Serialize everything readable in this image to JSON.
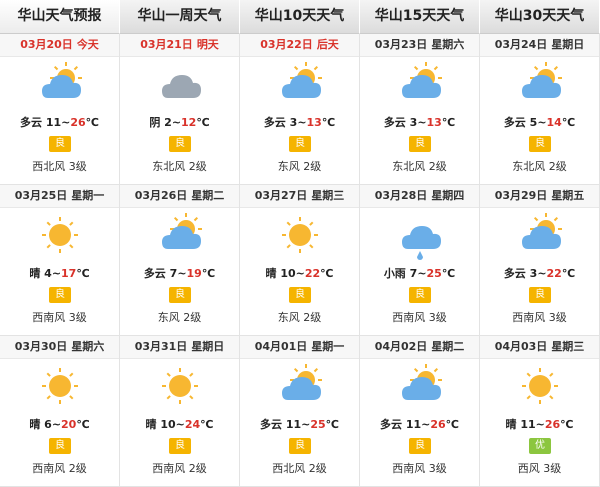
{
  "tabs": [
    "华山天气预报",
    "华山一周天气",
    "华山10天天气",
    "华山15天天气",
    "华山30天天气"
  ],
  "temp_separator": "~",
  "temp_unit": "℃",
  "days": [
    {
      "date": "03月20日",
      "weekday": "今天",
      "date_color": "#d9322a",
      "condition": "多云",
      "low": 11,
      "high": 26,
      "air": "良",
      "air_color": "#f5b400",
      "wind": "西北风 3级"
    },
    {
      "date": "03月21日",
      "weekday": "明天",
      "date_color": "#d9322a",
      "condition": "阴",
      "low": 2,
      "high": 12,
      "air": "良",
      "air_color": "#f5b400",
      "wind": "东北风 2级"
    },
    {
      "date": "03月22日",
      "weekday": "后天",
      "date_color": "#d9322a",
      "condition": "多云",
      "low": 3,
      "high": 13,
      "air": "良",
      "air_color": "#f5b400",
      "wind": "东风 2级"
    },
    {
      "date": "03月23日",
      "weekday": "星期六",
      "date_color": "#333333",
      "condition": "多云",
      "low": 3,
      "high": 13,
      "air": "良",
      "air_color": "#f5b400",
      "wind": "东北风 2级"
    },
    {
      "date": "03月24日",
      "weekday": "星期日",
      "date_color": "#333333",
      "condition": "多云",
      "low": 5,
      "high": 14,
      "air": "良",
      "air_color": "#f5b400",
      "wind": "东北风 2级"
    },
    {
      "date": "03月25日",
      "weekday": "星期一",
      "date_color": "#333333",
      "condition": "晴",
      "low": 4,
      "high": 17,
      "air": "良",
      "air_color": "#f5b400",
      "wind": "西南风 3级"
    },
    {
      "date": "03月26日",
      "weekday": "星期二",
      "date_color": "#333333",
      "condition": "多云",
      "low": 7,
      "high": 19,
      "air": "良",
      "air_color": "#f5b400",
      "wind": "东风 2级"
    },
    {
      "date": "03月27日",
      "weekday": "星期三",
      "date_color": "#333333",
      "condition": "晴",
      "low": 10,
      "high": 22,
      "air": "良",
      "air_color": "#f5b400",
      "wind": "东风 2级"
    },
    {
      "date": "03月28日",
      "weekday": "星期四",
      "date_color": "#333333",
      "condition": "小雨",
      "low": 7,
      "high": 25,
      "air": "良",
      "air_color": "#f5b400",
      "wind": "西南风 3级"
    },
    {
      "date": "03月29日",
      "weekday": "星期五",
      "date_color": "#333333",
      "condition": "多云",
      "low": 3,
      "high": 22,
      "air": "良",
      "air_color": "#f5b400",
      "wind": "西南风 3级"
    },
    {
      "date": "03月30日",
      "weekday": "星期六",
      "date_color": "#333333",
      "condition": "晴",
      "low": 6,
      "high": 20,
      "air": "良",
      "air_color": "#f5b400",
      "wind": "西南风 2级"
    },
    {
      "date": "03月31日",
      "weekday": "星期日",
      "date_color": "#333333",
      "condition": "晴",
      "low": 10,
      "high": 24,
      "air": "良",
      "air_color": "#f5b400",
      "wind": "西南风 2级"
    },
    {
      "date": "04月01日",
      "weekday": "星期一",
      "date_color": "#333333",
      "condition": "多云",
      "low": 11,
      "high": 25,
      "air": "良",
      "air_color": "#f5b400",
      "wind": "西北风 2级"
    },
    {
      "date": "04月02日",
      "weekday": "星期二",
      "date_color": "#333333",
      "condition": "多云",
      "low": 11,
      "high": 26,
      "air": "良",
      "air_color": "#f5b400",
      "wind": "西南风 3级"
    },
    {
      "date": "04月03日",
      "weekday": "星期三",
      "date_color": "#333333",
      "condition": "晴",
      "low": 11,
      "high": 26,
      "air": "优",
      "air_color": "#8cc63f",
      "wind": "西风 3级"
    }
  ]
}
